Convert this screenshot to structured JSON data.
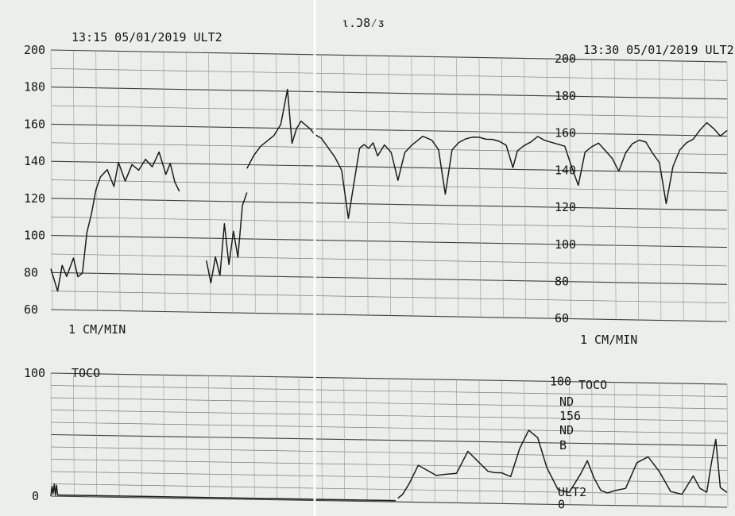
{
  "sheet": {
    "top_mark": "ι.Ͻ8⁄ᴣ"
  },
  "chart_data": [
    {
      "type": "line",
      "name_on_chart": "ULT2",
      "panels": [
        {
          "header": "13:15  05/01/2019  ULT2",
          "speed_label": "1 CM/MIN"
        },
        {
          "header": "13:30  05/01/2019  ULT2",
          "speed_label": "1 CM/MIN"
        }
      ],
      "ylim": [
        55,
        205
      ],
      "yticks": [
        60,
        80,
        100,
        120,
        140,
        160,
        180,
        200
      ],
      "xlim": [
        0,
        30
      ],
      "xunit": "min",
      "segments": [
        {
          "x": [
            0,
            0.3,
            0.5,
            0.7,
            1.0,
            1.2,
            1.4,
            1.6,
            1.8,
            2.0,
            2.2,
            2.5,
            2.8,
            3.0,
            3.3,
            3.6,
            3.9,
            4.2,
            4.5,
            4.8,
            5.1,
            5.3,
            5.5,
            5.7
          ],
          "y": [
            82,
            70,
            84,
            78,
            88,
            78,
            80,
            102,
            112,
            125,
            132,
            136,
            127,
            140,
            130,
            139,
            136,
            142,
            138,
            146,
            134,
            140,
            130,
            125
          ]
        },
        {
          "x": [
            6.9,
            7.1,
            7.3,
            7.5,
            7.7,
            7.9,
            8.1,
            8.3,
            8.5,
            8.7
          ],
          "y": [
            88,
            76,
            90,
            80,
            108,
            86,
            104,
            90,
            118,
            125
          ]
        },
        {
          "x": [
            8.7,
            9.0,
            9.3,
            9.6,
            9.9,
            10.2,
            10.5,
            10.7,
            10.9,
            11.1,
            11.3,
            11.5,
            11.7,
            12.0,
            12.3,
            12.6,
            12.9,
            13.2,
            13.5,
            13.7,
            13.9,
            14.1,
            14.3,
            14.5,
            14.8,
            15.1,
            15.4,
            15.7,
            16.0,
            16.3,
            16.5,
            16.7,
            16.9,
            17.2,
            17.5,
            17.8,
            18.1,
            18.4,
            18.7,
            19.0,
            19.3,
            19.6,
            19.9,
            20.2,
            20.5,
            20.7,
            21.0,
            21.3,
            21.6,
            21.9,
            22.2,
            22.5,
            22.8,
            23.1,
            23.4,
            23.7,
            24.0,
            24.3,
            24.6,
            24.9,
            25.2,
            25.5,
            25.8,
            26.1,
            26.4,
            26.7,
            27.0,
            27.3,
            27.6,
            27.9,
            28.2,
            28.5,
            28.8,
            29.1,
            29.4,
            29.7,
            30.0
          ],
          "y": [
            138,
            145,
            150,
            153,
            156,
            162,
            181,
            152,
            160,
            164,
            162,
            160,
            157,
            155,
            150,
            145,
            138,
            112,
            135,
            150,
            152,
            150,
            153,
            146,
            152,
            148,
            133,
            148,
            152,
            155,
            157,
            156,
            155,
            150,
            126,
            150,
            154,
            156,
            157,
            157,
            156,
            156,
            155,
            153,
            141,
            150,
            153,
            155,
            158,
            156,
            155,
            154,
            153,
            142,
            132,
            150,
            153,
            155,
            151,
            147,
            140,
            150,
            155,
            157,
            156,
            150,
            145,
            123,
            143,
            152,
            156,
            158,
            163,
            167,
            164,
            160,
            163
          ]
        }
      ]
    },
    {
      "type": "line",
      "name_on_chart": "TOCO",
      "panels": [
        {
          "header": "TOCO"
        },
        {
          "header": "TOCO"
        }
      ],
      "ylim": [
        0,
        100
      ],
      "yticks": [
        0,
        100
      ],
      "xlim": [
        0,
        30
      ],
      "xunit": "min",
      "side_labels": [
        "ND",
        "156",
        "ND",
        "B",
        "ULT2"
      ],
      "segments": [
        {
          "x": [
            0,
            0.05,
            0.1,
            0.15,
            0.2,
            0.25,
            0.3,
            0.4,
            2,
            4,
            6,
            8,
            10,
            12,
            14,
            15.3
          ],
          "y": [
            0,
            8,
            2,
            10,
            1,
            9,
            1,
            1,
            1,
            1,
            1,
            1,
            1,
            1,
            1,
            1
          ]
        },
        {
          "x": [
            15.4,
            15.6,
            15.9,
            16.3,
            16.7,
            17.1,
            17.5,
            18.0,
            18.5,
            19.0,
            19.4,
            19.7,
            20.0,
            20.4,
            20.8,
            21.2,
            21.6,
            22.0,
            22.5,
            23.0,
            23.5,
            23.8,
            24.1,
            24.4,
            24.7,
            25.0,
            25.5,
            26.0,
            26.5,
            27.0,
            27.5,
            28.0,
            28.5,
            28.8,
            29.1,
            29.3,
            29.5,
            29.7,
            30.0
          ],
          "y": [
            3,
            6,
            15,
            30,
            26,
            22,
            23,
            24,
            42,
            33,
            26,
            25,
            25,
            22,
            45,
            60,
            54,
            30,
            12,
            10,
            25,
            36,
            22,
            12,
            10,
            12,
            14,
            35,
            40,
            28,
            12,
            10,
            25,
            15,
            12,
            35,
            55,
            16,
            12
          ]
        }
      ]
    }
  ]
}
